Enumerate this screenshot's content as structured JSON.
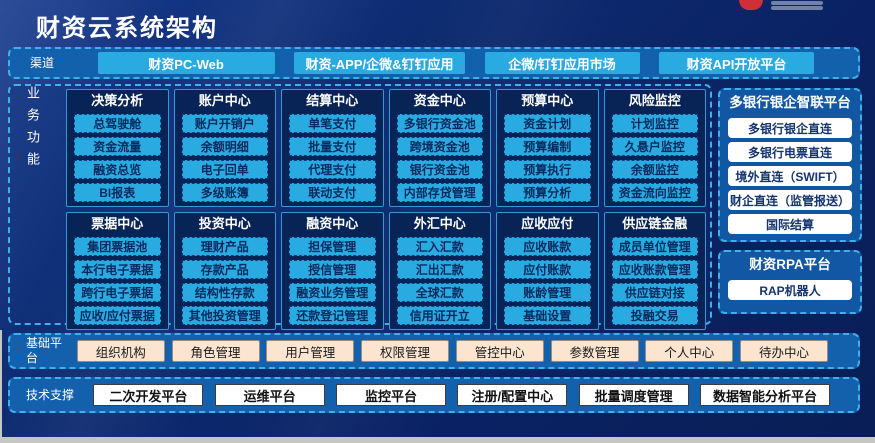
{
  "header": {
    "title": "财资云系统架构"
  },
  "channels": {
    "label": "渠道",
    "items": [
      "财资PC-Web",
      "财资-APP/企微&钉钉应用",
      "企微/钉钉应用市场",
      "财资API开放平台"
    ]
  },
  "business": {
    "label": "业务功能",
    "groups": [
      {
        "title": "决策分析",
        "items": [
          "总驾驶舱",
          "资金流量",
          "融资总览",
          "BI报表"
        ]
      },
      {
        "title": "账户中心",
        "items": [
          "账户开销户",
          "余额明细",
          "电子回单",
          "多级账簿"
        ]
      },
      {
        "title": "结算中心",
        "items": [
          "单笔支付",
          "批量支付",
          "代理支付",
          "联动支付"
        ]
      },
      {
        "title": "资金中心",
        "items": [
          "多银行资金池",
          "跨境资金池",
          "银行资金池",
          "内部存贷管理"
        ]
      },
      {
        "title": "预算中心",
        "items": [
          "资金计划",
          "预算编制",
          "预算执行",
          "预算分析"
        ]
      },
      {
        "title": "风险监控",
        "items": [
          "计划监控",
          "久悬户监控",
          "余额监控",
          "资金流向监控"
        ]
      },
      {
        "title": "票据中心",
        "items": [
          "集团票据池",
          "本行电子票据",
          "跨行电子票据",
          "应收/应付票据"
        ]
      },
      {
        "title": "投资中心",
        "items": [
          "理财产品",
          "存款产品",
          "结构性存款",
          "其他投资管理"
        ]
      },
      {
        "title": "融资中心",
        "items": [
          "担保管理",
          "授信管理",
          "融资业务管理",
          "还款登记管理"
        ]
      },
      {
        "title": "外汇中心",
        "items": [
          "汇入汇款",
          "汇出汇款",
          "全球汇款",
          "信用证开立"
        ]
      },
      {
        "title": "应收应付",
        "items": [
          "应收账款",
          "应付账款",
          "账龄管理",
          "基础设置"
        ]
      },
      {
        "title": "供应链金融",
        "items": [
          "成员单位管理",
          "应收账款管理",
          "供应链对接",
          "投融交易"
        ]
      }
    ]
  },
  "right_panels": [
    {
      "title": "多银行银企智联平台",
      "items": [
        "多银行银企直连",
        "多银行电票直连",
        "境外直连（SWIFT）",
        "财企直连（监管报送）",
        "国际结算"
      ]
    },
    {
      "title": "财资RPA平台",
      "items": [
        "RAP机器人"
      ]
    }
  ],
  "base_platform": {
    "label": "基础平台",
    "items": [
      "组织机构",
      "角色管理",
      "用户管理",
      "权限管理",
      "管控中心",
      "参数管理",
      "个人中心",
      "待办中心"
    ]
  },
  "tech_support": {
    "label": "技术支撑",
    "items": [
      "二次开发平台",
      "运维平台",
      "监控平台",
      "注册/配置中心",
      "批量调度管理",
      "数据智能分析平台"
    ]
  },
  "icons": {
    "brand_logo": "red-arc-logo"
  },
  "colors": {
    "accent_cyan": "#29ABE2",
    "navy_background": "#0A2463",
    "band_blue": "#1360AC",
    "border_cyan": "#3FB0E8",
    "peach": "#FBE5D0",
    "white": "#FFFFFF",
    "logo_red": "#CF3038"
  }
}
